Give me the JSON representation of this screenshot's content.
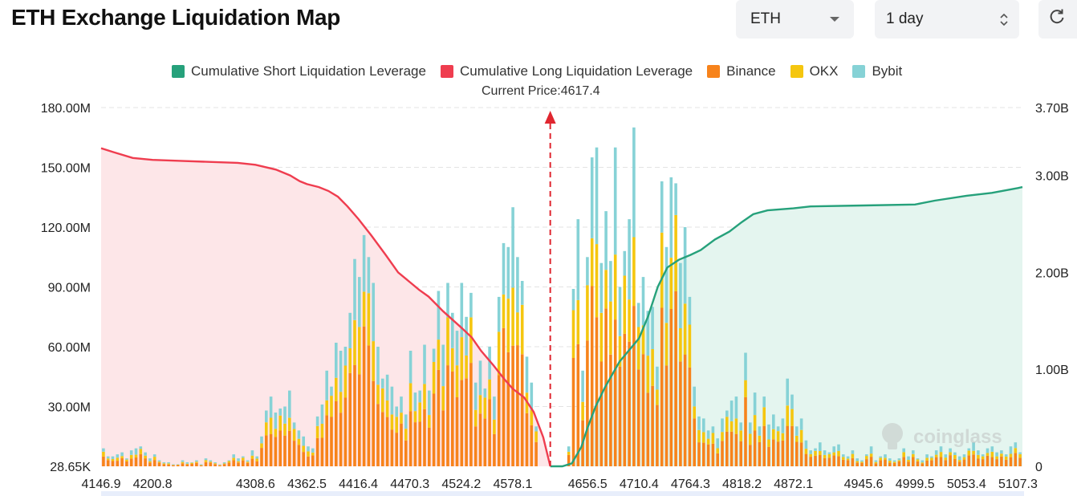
{
  "header": {
    "title": "ETH Exchange Liquidation Map",
    "coin_select": "ETH",
    "range_select": "1 day",
    "refresh_icon": "refresh-icon"
  },
  "legend": [
    {
      "label": "Cumulative Short Liquidation Leverage",
      "color": "#26a17b"
    },
    {
      "label": "Cumulative Long Liquidation Leverage",
      "color": "#ef3d4f"
    },
    {
      "label": "Binance",
      "color": "#f7831b"
    },
    {
      "label": "OKX",
      "color": "#f5c60f"
    },
    {
      "label": "Bybit",
      "color": "#86d2d6"
    }
  ],
  "current_price_label": "Current Price:4617.4",
  "watermark": "coinglass",
  "chart_data": {
    "type": "bar",
    "current_price": 4617.4,
    "x_ticks": [
      "4146.9",
      "4200.8",
      "4308.6",
      "4362.5",
      "4416.4",
      "4470.3",
      "4524.2",
      "4578.1",
      "4656.5",
      "4710.4",
      "4764.3",
      "4818.2",
      "4872.1",
      "4945.6",
      "4999.5",
      "5053.4",
      "5107.3"
    ],
    "left_axis_ticks": [
      "28.65K",
      "30.00M",
      "60.00M",
      "90.00M",
      "120.00M",
      "150.00M",
      "180.00M"
    ],
    "right_axis_ticks": [
      "0",
      "1.00B",
      "2.00B",
      "3.00B",
      "3.70B"
    ],
    "left_axis_max_M": 180,
    "right_axis_max_B": 3.7,
    "series_colors": {
      "binance": "#f7831b",
      "okx": "#f5c60f",
      "bybit": "#86d2d6"
    },
    "bar_x_range": [
      4146.9,
      5112.0
    ],
    "bars_totals_M": [
      9,
      5,
      5,
      6,
      7,
      4,
      8,
      9,
      10,
      7,
      4,
      6,
      3,
      2,
      2,
      1,
      1,
      3,
      2,
      2,
      3,
      1,
      4,
      3,
      2,
      1,
      2,
      3,
      6,
      4,
      5,
      3,
      8,
      5,
      15,
      28,
      35,
      27,
      29,
      30,
      38,
      22,
      18,
      15,
      10,
      9,
      25,
      31,
      48,
      40,
      62,
      58,
      60,
      77,
      104,
      95,
      116,
      105,
      92,
      60,
      44,
      46,
      40,
      30,
      35,
      26,
      58,
      37,
      38,
      61,
      38,
      59,
      88,
      61,
      92,
      77,
      68,
      92,
      75,
      87,
      42,
      53,
      39,
      60,
      35,
      85,
      112,
      110,
      130,
      105,
      93,
      55,
      42,
      20,
      0,
      0,
      0,
      0,
      0,
      0,
      10,
      89,
      124,
      48,
      105,
      155,
      160,
      102,
      128,
      103,
      160,
      90,
      108,
      124,
      170,
      82,
      95,
      78,
      80,
      50,
      143,
      110,
      145,
      142,
      102,
      120,
      85,
      40,
      25,
      24,
      18,
      20,
      14,
      24,
      28,
      33,
      35,
      22,
      57,
      22,
      37,
      20,
      35,
      21,
      26,
      20,
      24,
      44,
      36,
      20,
      24,
      13,
      8,
      9,
      12,
      8,
      7,
      10,
      11,
      6,
      5,
      8,
      4,
      3,
      6,
      10,
      3,
      5,
      6,
      4,
      3,
      4,
      9,
      5,
      8,
      4,
      3,
      6,
      5,
      8,
      10,
      6,
      9,
      7,
      5,
      6,
      9,
      12,
      8,
      6,
      9,
      10,
      7,
      8,
      6,
      10,
      12,
      7
    ],
    "long_cumulative_B": [
      [
        4146.9,
        3.28
      ],
      [
        4160,
        3.24
      ],
      [
        4180,
        3.18
      ],
      [
        4200.8,
        3.16
      ],
      [
        4230,
        3.15
      ],
      [
        4260,
        3.14
      ],
      [
        4290,
        3.13
      ],
      [
        4308.6,
        3.11
      ],
      [
        4330,
        3.06
      ],
      [
        4345,
        3.0
      ],
      [
        4355,
        2.94
      ],
      [
        4362.5,
        2.91
      ],
      [
        4375,
        2.88
      ],
      [
        4385,
        2.84
      ],
      [
        4395,
        2.78
      ],
      [
        4405,
        2.68
      ],
      [
        4416.4,
        2.55
      ],
      [
        4430,
        2.38
      ],
      [
        4445,
        2.18
      ],
      [
        4458,
        2.0
      ],
      [
        4470.3,
        1.9
      ],
      [
        4480,
        1.82
      ],
      [
        4490,
        1.75
      ],
      [
        4505,
        1.6
      ],
      [
        4524.2,
        1.43
      ],
      [
        4535,
        1.33
      ],
      [
        4545,
        1.19
      ],
      [
        4558,
        1.04
      ],
      [
        4570,
        0.89
      ],
      [
        4578.1,
        0.8
      ],
      [
        4590,
        0.71
      ],
      [
        4600,
        0.56
      ],
      [
        4610,
        0.3
      ],
      [
        4617.4,
        0.0
      ]
    ],
    "short_cumulative_B": [
      [
        4617.4,
        0.0
      ],
      [
        4630,
        0.0
      ],
      [
        4640,
        0.03
      ],
      [
        4650,
        0.2
      ],
      [
        4656.5,
        0.4
      ],
      [
        4665,
        0.62
      ],
      [
        4675,
        0.82
      ],
      [
        4690,
        1.08
      ],
      [
        4710.4,
        1.32
      ],
      [
        4720,
        1.55
      ],
      [
        4730,
        1.85
      ],
      [
        4740,
        2.05
      ],
      [
        4752,
        2.13
      ],
      [
        4764.3,
        2.18
      ],
      [
        4775,
        2.23
      ],
      [
        4790,
        2.34
      ],
      [
        4805,
        2.42
      ],
      [
        4818.2,
        2.52
      ],
      [
        4830,
        2.6
      ],
      [
        4845,
        2.64
      ],
      [
        4872.1,
        2.66
      ],
      [
        4890,
        2.68
      ],
      [
        4945.6,
        2.69
      ],
      [
        4999.5,
        2.7
      ],
      [
        5020,
        2.74
      ],
      [
        5053.4,
        2.79
      ],
      [
        5080,
        2.82
      ],
      [
        5107.3,
        2.87
      ],
      [
        5112,
        2.88
      ]
    ]
  }
}
